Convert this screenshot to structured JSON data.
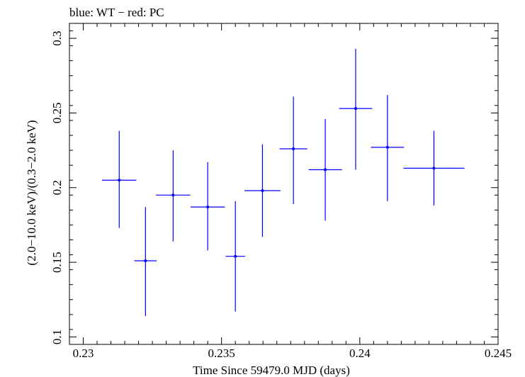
{
  "chart_data": {
    "type": "scatter",
    "title": "blue: WT − red: PC",
    "xlabel": "Time Since 59479.0 MJD (days)",
    "ylabel": "(2.0−10.0 keV)/(0.3−2.0 keV)",
    "xlim": [
      0.2295,
      0.245
    ],
    "ylim": [
      0.095,
      0.31
    ],
    "x_ticks": [
      0.23,
      0.235,
      0.24,
      0.245
    ],
    "x_tick_labels": [
      "0.23",
      "0.235",
      "0.24",
      "0.245"
    ],
    "y_ticks": [
      0.1,
      0.15,
      0.2,
      0.25,
      0.3
    ],
    "y_tick_labels": [
      "0.1",
      "0.15",
      "0.2",
      "0.25",
      "0.3"
    ],
    "series": [
      {
        "name": "WT",
        "color": "#0000ff",
        "points": [
          {
            "x": 0.2313,
            "y": 0.205,
            "xerr": 0.00062,
            "ylo": 0.173,
            "yhi": 0.238
          },
          {
            "x": 0.23225,
            "y": 0.151,
            "xerr": 0.0004,
            "ylo": 0.114,
            "yhi": 0.187
          },
          {
            "x": 0.23325,
            "y": 0.195,
            "xerr": 0.00062,
            "ylo": 0.164,
            "yhi": 0.225
          },
          {
            "x": 0.2345,
            "y": 0.187,
            "xerr": 0.00062,
            "ylo": 0.158,
            "yhi": 0.217
          },
          {
            "x": 0.2355,
            "y": 0.154,
            "xerr": 0.00035,
            "ylo": 0.117,
            "yhi": 0.191
          },
          {
            "x": 0.23648,
            "y": 0.198,
            "xerr": 0.00065,
            "ylo": 0.167,
            "yhi": 0.229
          },
          {
            "x": 0.2376,
            "y": 0.226,
            "xerr": 0.0005,
            "ylo": 0.189,
            "yhi": 0.261
          },
          {
            "x": 0.23875,
            "y": 0.212,
            "xerr": 0.0006,
            "ylo": 0.178,
            "yhi": 0.246
          },
          {
            "x": 0.23985,
            "y": 0.253,
            "xerr": 0.0006,
            "ylo": 0.212,
            "yhi": 0.293
          },
          {
            "x": 0.241,
            "y": 0.227,
            "xerr": 0.0006,
            "ylo": 0.191,
            "yhi": 0.262
          },
          {
            "x": 0.24268,
            "y": 0.213,
            "xerr": 0.0011,
            "ylo": 0.188,
            "yhi": 0.238
          }
        ]
      }
    ]
  }
}
